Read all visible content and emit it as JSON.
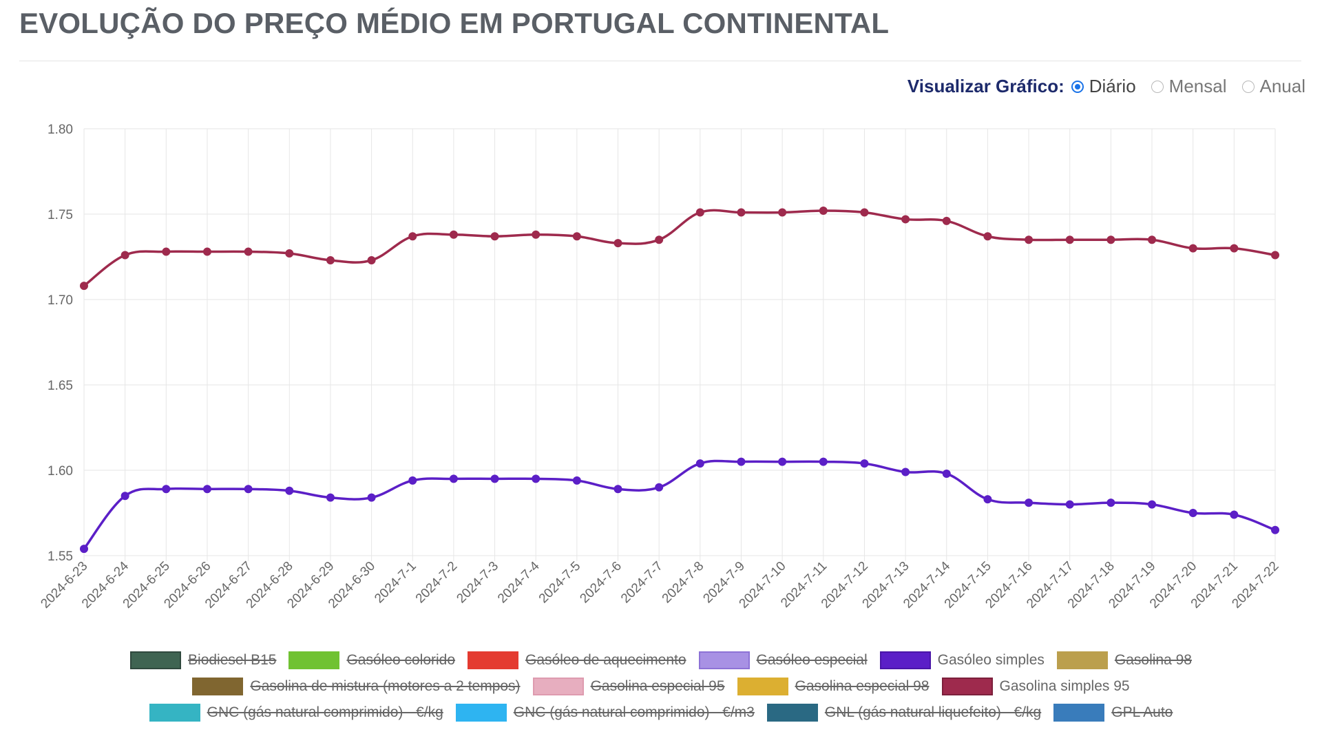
{
  "header": {
    "title": "EVOLUÇÃO DO PREÇO MÉDIO EM PORTUGAL CONTINENTAL"
  },
  "view": {
    "label": "Visualizar Gráfico:",
    "options": [
      {
        "label": "Diário",
        "checked": true
      },
      {
        "label": "Mensal",
        "checked": false
      },
      {
        "label": "Anual",
        "checked": false
      }
    ]
  },
  "chart_data": {
    "type": "line",
    "title": "",
    "xlabel": "",
    "ylabel": "",
    "ylim": [
      1.55,
      1.8
    ],
    "yticks": [
      "1.80",
      "1.75",
      "1.70",
      "1.65",
      "1.60",
      "1.55"
    ],
    "grid": true,
    "categories": [
      "2024-6-23",
      "2024-6-24",
      "2024-6-25",
      "2024-6-26",
      "2024-6-27",
      "2024-6-28",
      "2024-6-29",
      "2024-6-30",
      "2024-7-1",
      "2024-7-2",
      "2024-7-3",
      "2024-7-4",
      "2024-7-5",
      "2024-7-6",
      "2024-7-7",
      "2024-7-8",
      "2024-7-9",
      "2024-7-10",
      "2024-7-11",
      "2024-7-12",
      "2024-7-13",
      "2024-7-14",
      "2024-7-15",
      "2024-7-16",
      "2024-7-17",
      "2024-7-18",
      "2024-7-19",
      "2024-7-20",
      "2024-7-21",
      "2024-7-22"
    ],
    "series": [
      {
        "name": "Gasolina simples 95",
        "color": "#9e2a4d",
        "values": [
          1.708,
          1.726,
          1.728,
          1.728,
          1.728,
          1.727,
          1.723,
          1.723,
          1.737,
          1.738,
          1.737,
          1.738,
          1.737,
          1.733,
          1.735,
          1.751,
          1.751,
          1.751,
          1.752,
          1.751,
          1.747,
          1.746,
          1.737,
          1.735,
          1.735,
          1.735,
          1.735,
          1.73,
          1.73,
          1.726
        ]
      },
      {
        "name": "Gasóleo simples",
        "color": "#5b1fc7",
        "values": [
          1.554,
          1.585,
          1.589,
          1.589,
          1.589,
          1.588,
          1.584,
          1.584,
          1.594,
          1.595,
          1.595,
          1.595,
          1.594,
          1.589,
          1.59,
          1.604,
          1.605,
          1.605,
          1.605,
          1.604,
          1.599,
          1.598,
          1.583,
          1.581,
          1.58,
          1.581,
          1.58,
          1.575,
          1.574,
          1.565
        ]
      }
    ],
    "legend_position": "bottom",
    "legend": [
      [
        {
          "name": "Biodiesel B15",
          "color": "#1e4a35",
          "border": "#0d2a1d",
          "hidden": true
        },
        {
          "name": "Gasóleo colorido",
          "color": "#58b80f",
          "border": "#58b80f",
          "hidden": true
        },
        {
          "name": "Gasóleo de aquecimento",
          "color": "#e01a0c",
          "border": "#e01a0c",
          "hidden": true
        },
        {
          "name": "Gasóleo especial",
          "color": "#9a7ee0",
          "border": "#7a5ad0",
          "hidden": true
        },
        {
          "name": "Gasóleo simples",
          "color": "#5b1fc7",
          "border": "#4a16a8",
          "hidden": false
        },
        {
          "name": "Gasolina 98",
          "color": "#b08f2e",
          "border": "#b08f2e",
          "hidden": true
        }
      ],
      [
        {
          "name": "Gasolina de mistura (motores a 2 tempos)",
          "color": "#6b4c0c",
          "border": "#6b4c0c",
          "hidden": true
        },
        {
          "name": "Gasolina especial 95",
          "color": "#e3a1b5",
          "border": "#d98aa2",
          "hidden": true
        },
        {
          "name": "Gasolina especial 98",
          "color": "#d7a20e",
          "border": "#d7a20e",
          "hidden": true
        },
        {
          "name": "Gasolina simples 95",
          "color": "#9e2a4d",
          "border": "#7c1f3b",
          "hidden": false
        }
      ],
      [
        {
          "name": "GNC (gás natural comprimido) - €/kg",
          "color": "#12a8b9",
          "border": "#12a8b9",
          "hidden": true
        },
        {
          "name": "GNC (gás natural comprimido) - €/m3",
          "color": "#0aa7ef",
          "border": "#0aa7ef",
          "hidden": true
        },
        {
          "name": "GNL (gás natural liquefeito) - €/kg",
          "color": "#06506e",
          "border": "#06506e",
          "hidden": true
        },
        {
          "name": "GPL Auto",
          "color": "#1766b0",
          "border": "#1766b0",
          "hidden": true
        }
      ]
    ]
  }
}
